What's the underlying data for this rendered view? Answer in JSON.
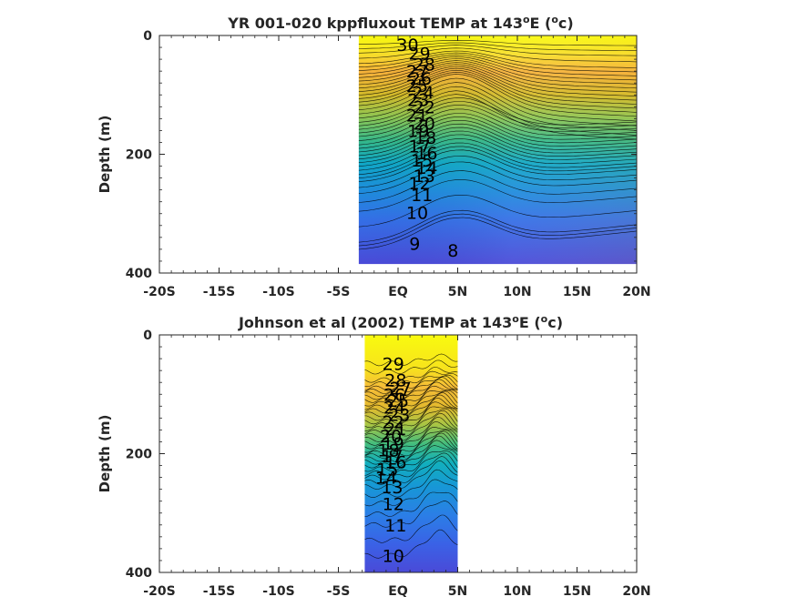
{
  "chart_data": [
    {
      "type": "heatmap",
      "subtype": "filled-contour",
      "title_main": "YR 001-020 kppfluxout TEMP at 143",
      "title_deg": "o",
      "title_e": "E (",
      "title_unit_sup": "o",
      "title_unit": "c)",
      "ylabel": "Depth (m)",
      "xlabel": "",
      "xlim": [
        -20,
        20
      ],
      "ylim": [
        0,
        400
      ],
      "y_reversed": true,
      "x_ticks": [
        -20,
        -15,
        -10,
        -5,
        0,
        5,
        10,
        15,
        20
      ],
      "x_tick_labels": [
        "-20S",
        "-15S",
        "-10S",
        "-5S",
        "EQ",
        "5N",
        "10N",
        "15N",
        "20N"
      ],
      "y_ticks": [
        0,
        200,
        400
      ],
      "y_tick_labels": [
        "0",
        "200",
        "400"
      ],
      "data_extent_lat": [
        -3.3,
        20
      ],
      "data_extent_depth": [
        0,
        385
      ],
      "colormap": "parula",
      "color_range": [
        7,
        31
      ],
      "contour_labels": [
        {
          "text": "30",
          "lat": 0.8,
          "depth": 15
        },
        {
          "text": "29",
          "lat": 1.8,
          "depth": 30
        },
        {
          "text": "28",
          "lat": 2.2,
          "depth": 48
        },
        {
          "text": "27",
          "lat": 1.6,
          "depth": 60
        },
        {
          "text": "26",
          "lat": 1.9,
          "depth": 72
        },
        {
          "text": "25",
          "lat": 1.6,
          "depth": 84
        },
        {
          "text": "24",
          "lat": 2.1,
          "depth": 96
        },
        {
          "text": "23",
          "lat": 1.7,
          "depth": 108
        },
        {
          "text": "22",
          "lat": 2.2,
          "depth": 120
        },
        {
          "text": "21",
          "lat": 1.6,
          "depth": 134
        },
        {
          "text": "20",
          "lat": 2.2,
          "depth": 148
        },
        {
          "text": "19",
          "lat": 1.7,
          "depth": 160
        },
        {
          "text": "18",
          "lat": 2.3,
          "depth": 172
        },
        {
          "text": "17",
          "lat": 1.8,
          "depth": 186
        },
        {
          "text": "16",
          "lat": 2.4,
          "depth": 198
        },
        {
          "text": "15",
          "lat": 2.0,
          "depth": 210
        },
        {
          "text": "14",
          "lat": 2.4,
          "depth": 222
        },
        {
          "text": "13",
          "lat": 2.2,
          "depth": 236
        },
        {
          "text": "12",
          "lat": 1.8,
          "depth": 248
        },
        {
          "text": "11",
          "lat": 2.0,
          "depth": 268
        },
        {
          "text": "10",
          "lat": 1.6,
          "depth": 298
        },
        {
          "text": "9",
          "lat": 1.4,
          "depth": 350
        },
        {
          "text": "8",
          "lat": 4.6,
          "depth": 362
        }
      ]
    },
    {
      "type": "heatmap",
      "subtype": "filled-contour",
      "title_main": "Johnson et al (2002) TEMP at 143",
      "title_deg": "o",
      "title_e": "E (",
      "title_unit_sup": "o",
      "title_unit": "c)",
      "ylabel": "Depth (m)",
      "xlabel": "",
      "xlim": [
        -20,
        20
      ],
      "ylim": [
        0,
        400
      ],
      "y_reversed": true,
      "x_ticks": [
        -20,
        -15,
        -10,
        -5,
        0,
        5,
        10,
        15,
        20
      ],
      "x_tick_labels": [
        "-20S",
        "-15S",
        "-10S",
        "-5S",
        "EQ",
        "5N",
        "10N",
        "15N",
        "20N"
      ],
      "y_ticks": [
        0,
        200,
        400
      ],
      "y_tick_labels": [
        "0",
        "200",
        "400"
      ],
      "data_extent_lat": [
        -2.8,
        5
      ],
      "data_extent_depth": [
        0,
        400
      ],
      "colormap": "parula",
      "color_range": [
        7,
        31
      ],
      "contour_labels": [
        {
          "text": "29",
          "lat": -0.4,
          "depth": 48
        },
        {
          "text": "28",
          "lat": -0.2,
          "depth": 76
        },
        {
          "text": "27",
          "lat": 0.2,
          "depth": 90
        },
        {
          "text": "26",
          "lat": -0.3,
          "depth": 100
        },
        {
          "text": "25",
          "lat": 0.0,
          "depth": 110
        },
        {
          "text": "24",
          "lat": -0.3,
          "depth": 122
        },
        {
          "text": "23",
          "lat": 0.1,
          "depth": 134
        },
        {
          "text": "22",
          "lat": -0.4,
          "depth": 146
        },
        {
          "text": "21",
          "lat": -0.2,
          "depth": 158
        },
        {
          "text": "20",
          "lat": -0.6,
          "depth": 170
        },
        {
          "text": "19",
          "lat": -0.4,
          "depth": 182
        },
        {
          "text": "18",
          "lat": -0.8,
          "depth": 194
        },
        {
          "text": "17",
          "lat": -0.5,
          "depth": 204
        },
        {
          "text": "16",
          "lat": -0.2,
          "depth": 214
        },
        {
          "text": "15",
          "lat": -0.9,
          "depth": 226
        },
        {
          "text": "14",
          "lat": -1.0,
          "depth": 240
        },
        {
          "text": "13",
          "lat": -0.5,
          "depth": 256
        },
        {
          "text": "12",
          "lat": -0.4,
          "depth": 284
        },
        {
          "text": "11",
          "lat": -0.2,
          "depth": 320
        },
        {
          "text": "10",
          "lat": -0.4,
          "depth": 372
        }
      ]
    }
  ]
}
